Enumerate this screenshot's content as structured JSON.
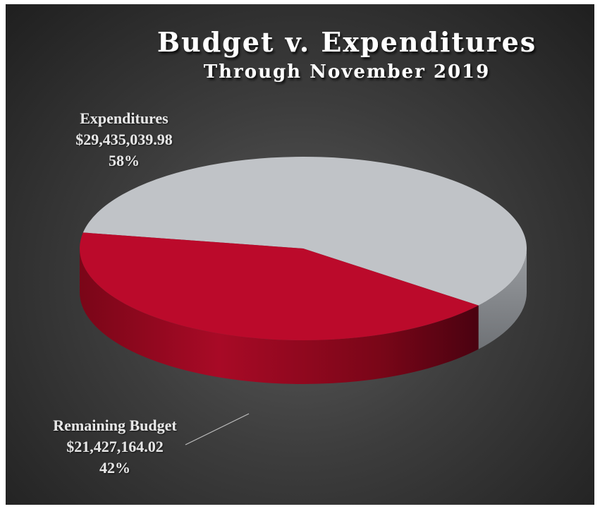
{
  "chart_data": {
    "type": "pie",
    "title": "Budget v. Expenditures",
    "subtitle": "Through November 2019",
    "slices": [
      {
        "name": "Expenditures",
        "amount_label": "$29,435,039.98",
        "percent_label": "58%",
        "value": 29435039.98,
        "percent": 58,
        "color": "#c0c3c7"
      },
      {
        "name": "Remaining Budget",
        "amount_label": "$21,427,164.02",
        "percent_label": "42%",
        "value": 21427164.02,
        "percent": 42,
        "color": "#bb0a2b"
      }
    ],
    "style": "3d",
    "background": "#3d3d3d"
  }
}
